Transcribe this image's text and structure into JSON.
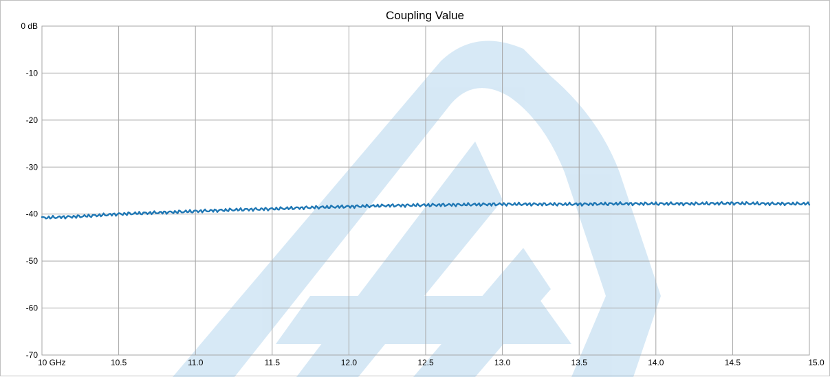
{
  "chart_data": {
    "type": "line",
    "title": "Coupling Value",
    "xlabel": "",
    "ylabel": "",
    "xlim": [
      10.0,
      15.0
    ],
    "ylim": [
      -70,
      0
    ],
    "x_ticks": [
      10.0,
      10.5,
      11.0,
      11.5,
      12.0,
      12.5,
      13.0,
      13.5,
      14.0,
      14.5,
      15.0
    ],
    "x_tick_labels": [
      "10 GHz",
      "10.5",
      "11.0",
      "11.5",
      "12.0",
      "12.5",
      "13.0",
      "13.5",
      "14.0",
      "14.5",
      "15.0"
    ],
    "y_ticks": [
      0,
      -10,
      -20,
      -30,
      -40,
      -50,
      -60,
      -70
    ],
    "y_tick_labels": [
      "0 dB",
      "-10",
      "-20",
      "-30",
      "-40",
      "-50",
      "-60",
      "-70"
    ],
    "grid": true,
    "line_color": "#1f77b4",
    "series": [
      {
        "x": [
          10.0,
          10.25,
          10.5,
          10.75,
          11.0,
          11.25,
          11.5,
          11.75,
          12.0,
          12.25,
          12.5,
          12.75,
          13.0,
          13.25,
          13.5,
          13.75,
          14.0,
          14.25,
          14.5,
          14.75,
          15.0
        ],
        "values": [
          -40.8,
          -40.5,
          -40.0,
          -39.7,
          -39.4,
          -39.1,
          -38.9,
          -38.6,
          -38.4,
          -38.2,
          -38.1,
          -38.0,
          -37.9,
          -37.9,
          -37.9,
          -37.8,
          -37.8,
          -37.8,
          -37.7,
          -37.8,
          -37.8
        ]
      }
    ]
  }
}
